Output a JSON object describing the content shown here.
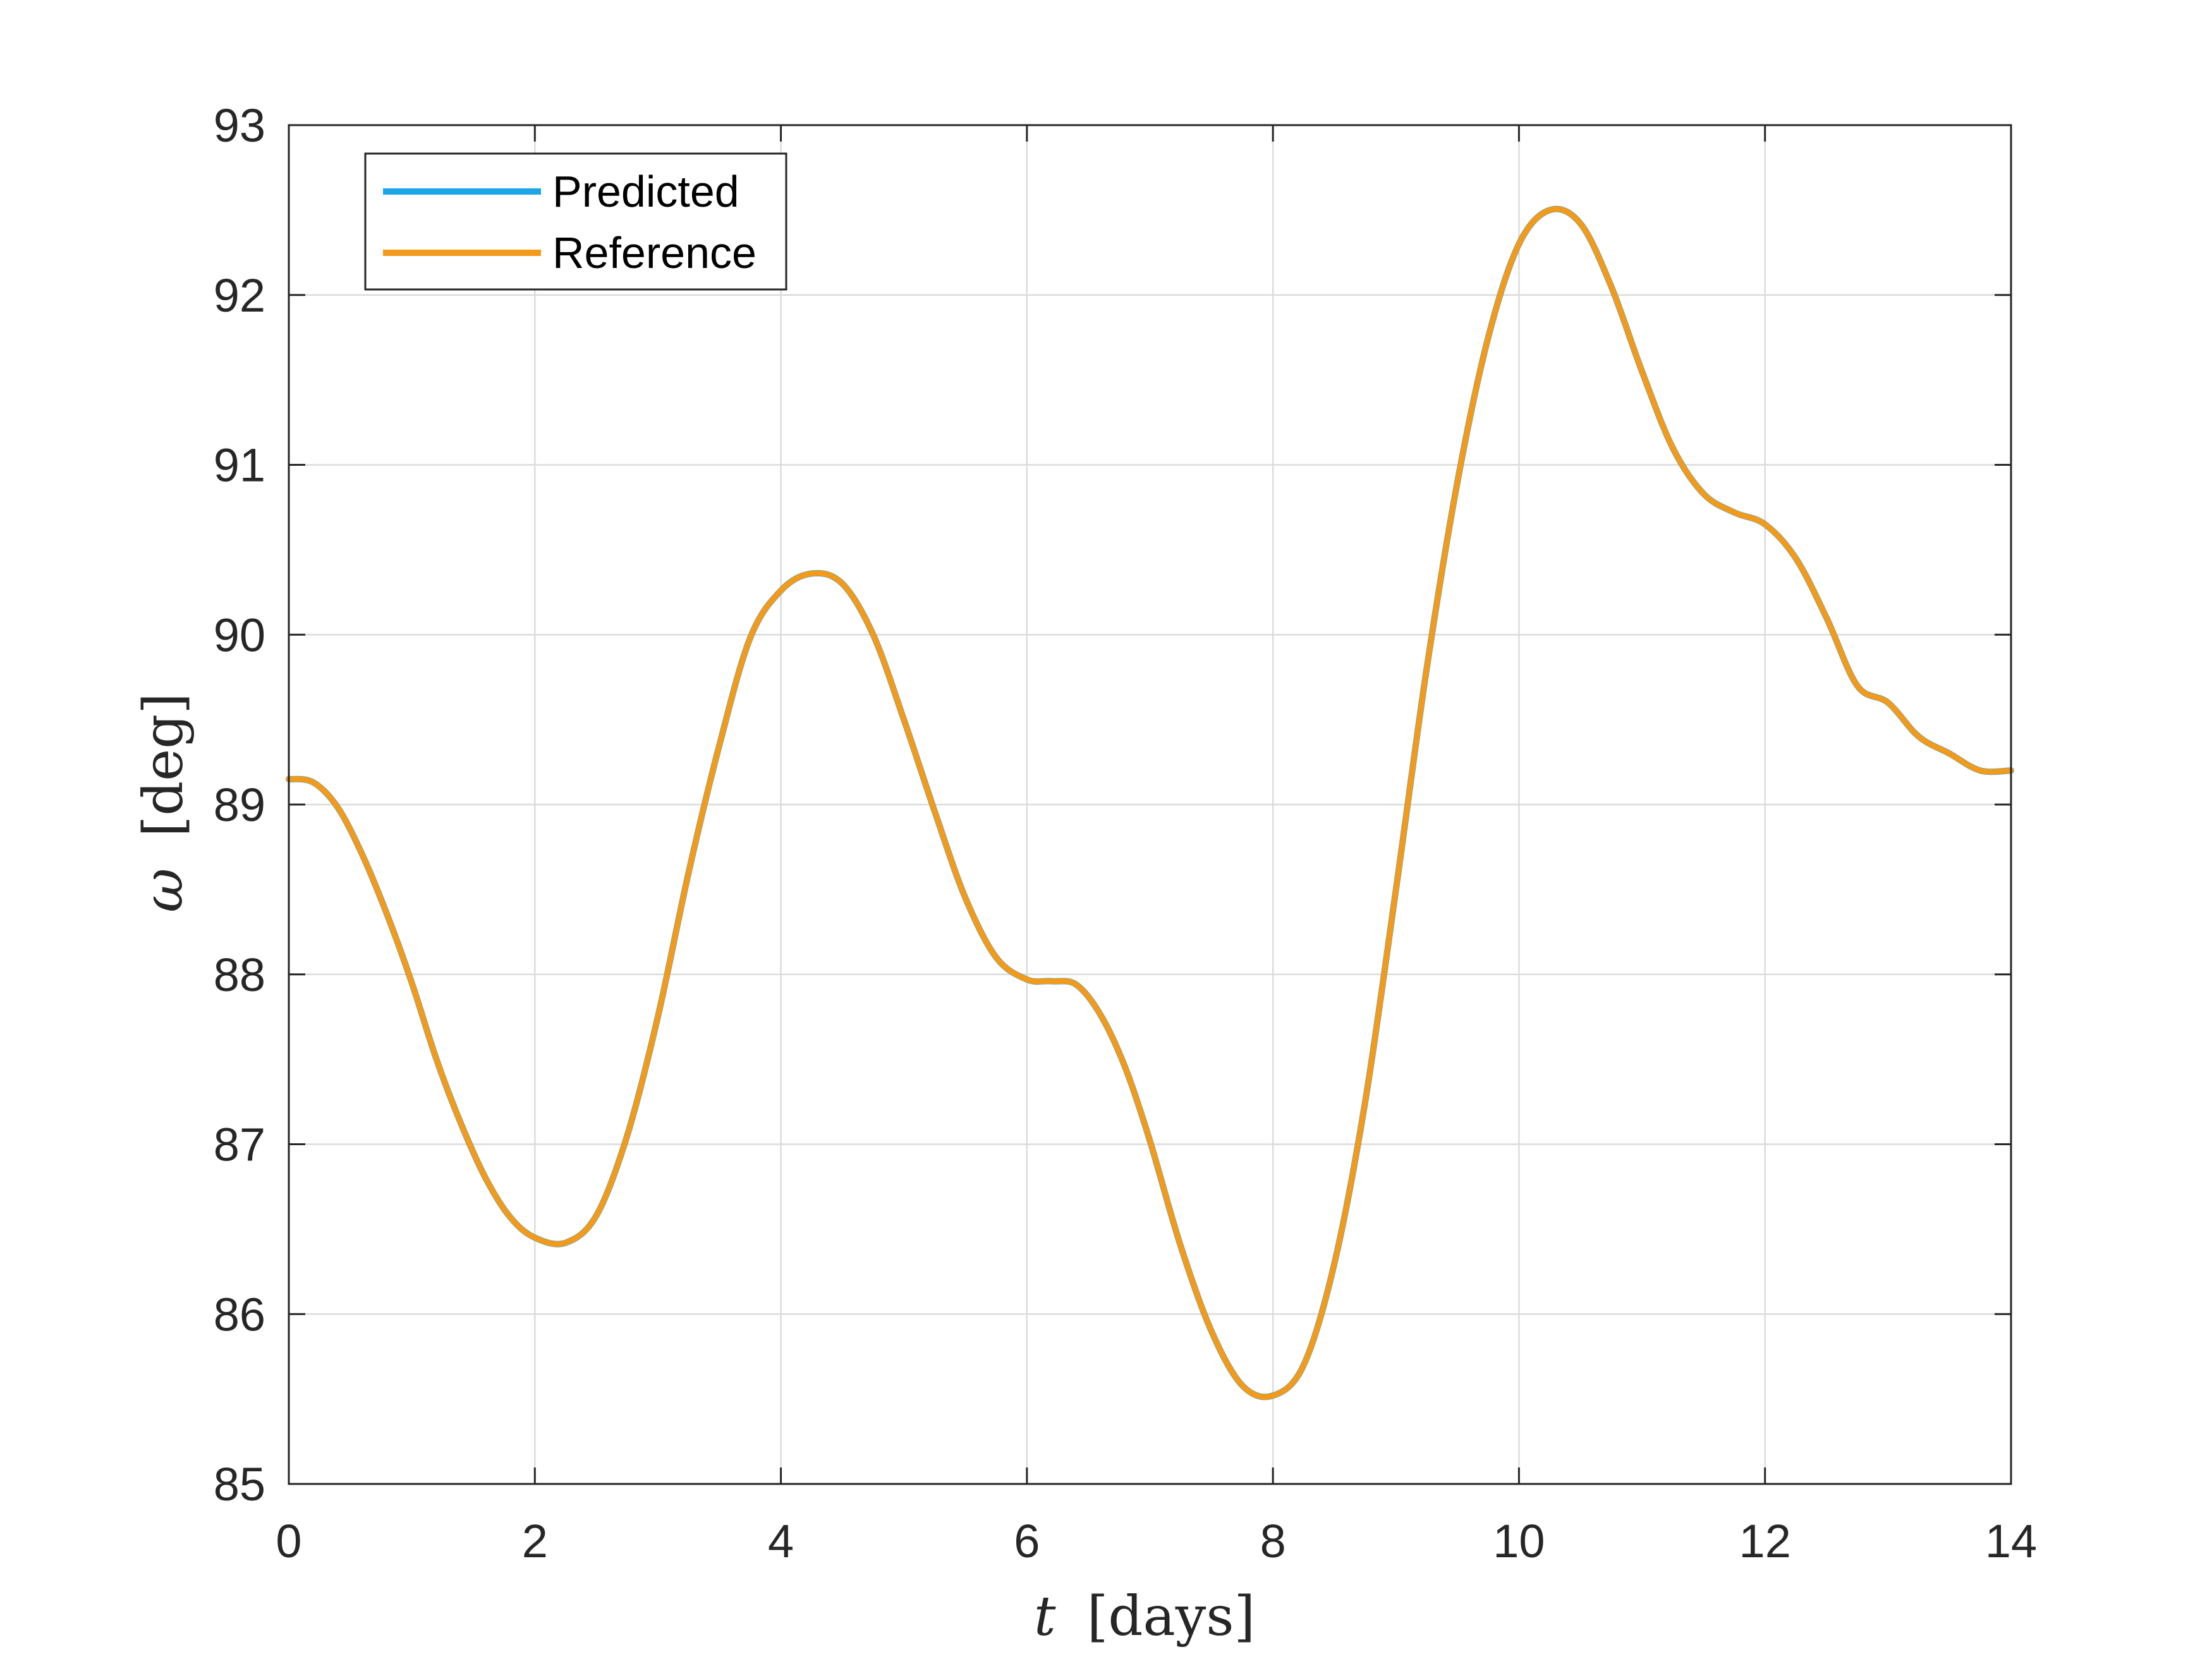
{
  "chart_data": {
    "type": "line",
    "title": "",
    "xlabel": {
      "symbol": "t",
      "unit": "[days]"
    },
    "ylabel": {
      "symbol": "ω",
      "unit": "[deg]"
    },
    "xlim": [
      0,
      14
    ],
    "ylim": [
      85,
      93
    ],
    "xticks": [
      0,
      2,
      4,
      6,
      8,
      10,
      12,
      14
    ],
    "yticks": [
      85,
      86,
      87,
      88,
      89,
      90,
      91,
      92,
      93
    ],
    "grid": true,
    "legend_position": "top-left",
    "series": [
      {
        "name": "Predicted",
        "color": "#1CA6E8",
        "x": [
          0,
          0.2,
          0.4,
          0.6,
          0.8,
          1.0,
          1.2,
          1.4,
          1.6,
          1.8,
          2.0,
          2.25,
          2.5,
          2.75,
          3.0,
          3.25,
          3.5,
          3.75,
          4.0,
          4.25,
          4.5,
          4.75,
          5.0,
          5.25,
          5.5,
          5.75,
          6.0,
          6.2,
          6.4,
          6.6,
          6.8,
          7.0,
          7.25,
          7.5,
          7.75,
          8.0,
          8.25,
          8.5,
          8.75,
          9.0,
          9.25,
          9.5,
          9.75,
          10.0,
          10.25,
          10.5,
          10.75,
          11.0,
          11.25,
          11.5,
          11.75,
          12.0,
          12.25,
          12.5,
          12.75,
          13.0,
          13.25,
          13.5,
          13.75,
          14.0
        ],
        "y": [
          89.15,
          89.13,
          88.98,
          88.7,
          88.35,
          87.95,
          87.5,
          87.12,
          86.8,
          86.57,
          86.45,
          86.42,
          86.58,
          87.05,
          87.75,
          88.6,
          89.35,
          89.98,
          90.26,
          90.36,
          90.3,
          90.0,
          89.5,
          88.96,
          88.45,
          88.1,
          87.97,
          87.96,
          87.94,
          87.76,
          87.45,
          87.02,
          86.4,
          85.9,
          85.58,
          85.52,
          85.7,
          86.3,
          87.25,
          88.5,
          89.8,
          90.9,
          91.75,
          92.3,
          92.5,
          92.42,
          92.05,
          91.55,
          91.1,
          90.83,
          90.72,
          90.65,
          90.45,
          90.1,
          89.7,
          89.6,
          89.4,
          89.3,
          89.2,
          89.2
        ]
      },
      {
        "name": "Reference",
        "color": "#F39A1A",
        "x": [
          0,
          0.2,
          0.4,
          0.6,
          0.8,
          1.0,
          1.2,
          1.4,
          1.6,
          1.8,
          2.0,
          2.25,
          2.5,
          2.75,
          3.0,
          3.25,
          3.5,
          3.75,
          4.0,
          4.25,
          4.5,
          4.75,
          5.0,
          5.25,
          5.5,
          5.75,
          6.0,
          6.2,
          6.4,
          6.6,
          6.8,
          7.0,
          7.25,
          7.5,
          7.75,
          8.0,
          8.25,
          8.5,
          8.75,
          9.0,
          9.25,
          9.5,
          9.75,
          10.0,
          10.25,
          10.5,
          10.75,
          11.0,
          11.25,
          11.5,
          11.75,
          12.0,
          12.25,
          12.5,
          12.75,
          13.0,
          13.25,
          13.5,
          13.75,
          14.0
        ],
        "y": [
          89.15,
          89.13,
          88.98,
          88.7,
          88.35,
          87.95,
          87.5,
          87.12,
          86.8,
          86.57,
          86.45,
          86.42,
          86.58,
          87.05,
          87.75,
          88.6,
          89.35,
          89.98,
          90.26,
          90.36,
          90.3,
          90.0,
          89.5,
          88.96,
          88.45,
          88.1,
          87.97,
          87.96,
          87.94,
          87.76,
          87.45,
          87.02,
          86.4,
          85.9,
          85.58,
          85.52,
          85.7,
          86.3,
          87.25,
          88.5,
          89.8,
          90.9,
          91.75,
          92.3,
          92.5,
          92.42,
          92.05,
          91.55,
          91.1,
          90.83,
          90.72,
          90.65,
          90.45,
          90.1,
          89.7,
          89.6,
          89.4,
          89.3,
          89.2,
          89.2
        ]
      }
    ]
  }
}
